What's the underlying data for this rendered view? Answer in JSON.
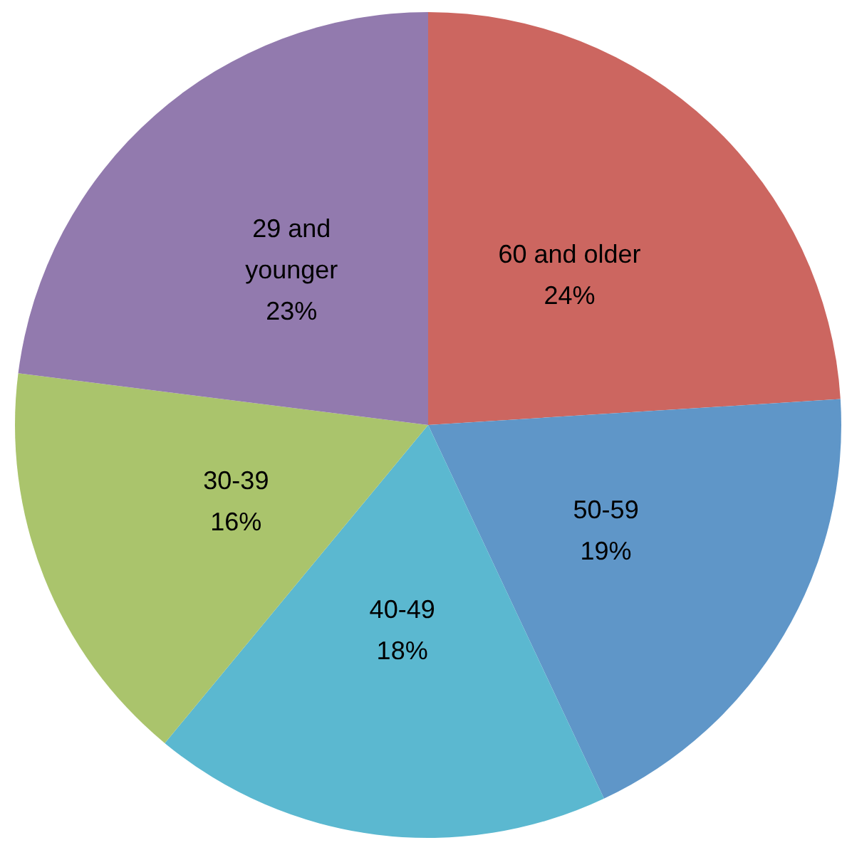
{
  "chart_data": {
    "type": "pie",
    "categories": [
      "60 and older",
      "50-59",
      "40-49",
      "30-39",
      "29 and younger"
    ],
    "values": [
      24,
      19,
      18,
      16,
      23
    ],
    "value_labels": [
      "24%",
      "19%",
      "18%",
      "16%",
      "23%"
    ],
    "colors": [
      "#cc6660",
      "#5f96c8",
      "#5bb8d0",
      "#aac46c",
      "#927aae"
    ]
  }
}
